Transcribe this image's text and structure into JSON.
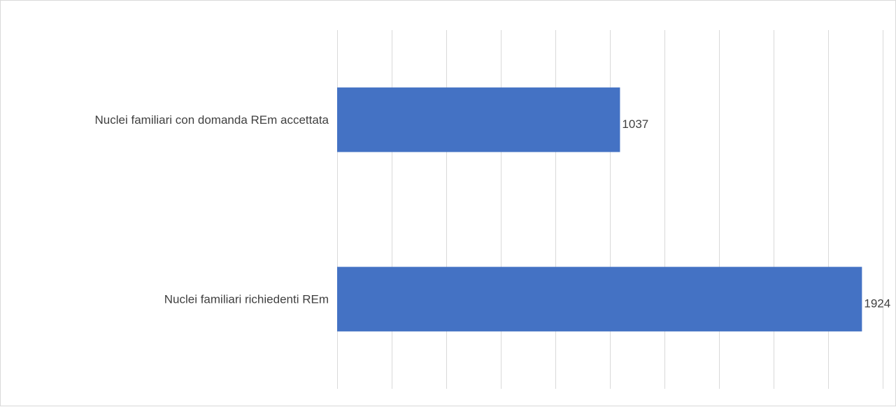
{
  "chart_data": {
    "type": "bar",
    "orientation": "horizontal",
    "categories": [
      "Nuclei familiari con domanda REm accettata",
      "Nuclei familiari richiedenti REm"
    ],
    "values": [
      1037,
      1924
    ],
    "data_labels": [
      "1037",
      "1924"
    ],
    "xlim": [
      0,
      2000
    ],
    "x_tick_step": 200,
    "x_tick_labels_shown": false,
    "grid": "vertical",
    "legend": "none",
    "colors": {
      "bar": "#4472C4",
      "grid": "#d9d9d9",
      "text": "#404040"
    }
  }
}
